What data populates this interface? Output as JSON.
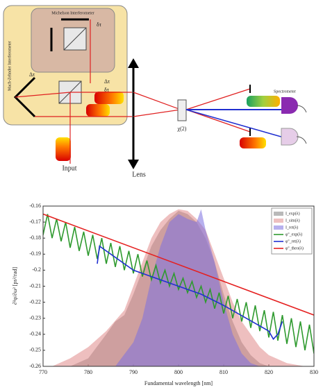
{
  "diagram": {
    "labels": {
      "michelson": "Michelson Interferometer",
      "mach_zehnder": "Mach-Zehnder Interferometer",
      "delta_tau_small_1": "δτ",
      "delta_tau_big_1": "Δτ",
      "delta_tau_big_2": "Δτ",
      "delta_tau_small_2": "δτ",
      "lens": "Lens",
      "crystal": "χ(2)",
      "spectrometer": "Spectrometer",
      "input": "Input"
    }
  },
  "chart_data": {
    "type": "line",
    "xlabel": "Fundamental wavelength [nm]",
    "ylabel": "∂²φ/∂ω² [ps²/rad]",
    "xlim": [
      770,
      830
    ],
    "ylim": [
      -0.26,
      -0.16
    ],
    "xticks": [
      770,
      780,
      790,
      800,
      810,
      820,
      830
    ],
    "yticks": [
      -0.16,
      -0.17,
      -0.18,
      -0.19,
      -0.2,
      -0.21,
      -0.22,
      -0.23,
      -0.24,
      -0.25,
      -0.26
    ],
    "legend": "upper right",
    "series": [
      {
        "name": "I_exp(λ)",
        "kind": "area",
        "color": "#7f7f7f",
        "x": [
          776,
          780,
          784,
          786,
          788,
          790,
          792,
          794,
          796,
          798,
          800,
          802,
          804,
          806,
          808,
          810,
          812,
          814,
          816,
          818,
          820
        ],
        "values": [
          -0.26,
          -0.255,
          -0.24,
          -0.232,
          -0.228,
          -0.215,
          -0.2,
          -0.185,
          -0.175,
          -0.168,
          -0.163,
          -0.165,
          -0.17,
          -0.18,
          -0.195,
          -0.215,
          -0.232,
          -0.245,
          -0.253,
          -0.258,
          -0.26
        ]
      },
      {
        "name": "I_sim(λ)",
        "kind": "area",
        "color": "#e08a8a",
        "x": [
          772,
          776,
          780,
          784,
          788,
          790,
          792,
          794,
          796,
          798,
          800,
          802,
          804,
          806,
          808,
          810,
          812,
          814,
          816,
          818,
          820,
          824,
          828
        ],
        "values": [
          -0.26,
          -0.255,
          -0.248,
          -0.238,
          -0.225,
          -0.21,
          -0.195,
          -0.18,
          -0.17,
          -0.165,
          -0.162,
          -0.163,
          -0.168,
          -0.175,
          -0.19,
          -0.205,
          -0.22,
          -0.232,
          -0.24,
          -0.248,
          -0.253,
          -0.258,
          -0.26
        ]
      },
      {
        "name": "I_ret(λ)",
        "kind": "area",
        "color": "#7b6fe0",
        "x": [
          786,
          790,
          792,
          794,
          796,
          798,
          800,
          802,
          804,
          805,
          806,
          808,
          810,
          812,
          814,
          816,
          818
        ],
        "values": [
          -0.26,
          -0.245,
          -0.23,
          -0.205,
          -0.185,
          -0.17,
          -0.165,
          -0.168,
          -0.17,
          -0.162,
          -0.175,
          -0.195,
          -0.22,
          -0.24,
          -0.252,
          -0.258,
          -0.26
        ]
      },
      {
        "name": "φ''_exp(λ)",
        "kind": "line",
        "color": "#2e9a2e",
        "x": [
          770,
          771,
          772,
          773,
          774,
          775,
          776,
          777,
          778,
          779,
          780,
          781,
          782,
          783,
          784,
          785,
          786,
          787,
          788,
          789,
          790,
          791,
          792,
          793,
          794,
          795,
          796,
          797,
          798,
          799,
          800,
          801,
          802,
          803,
          804,
          805,
          806,
          807,
          808,
          809,
          810,
          811,
          812,
          813,
          814,
          815,
          816,
          817,
          818,
          819,
          820,
          821,
          822,
          823,
          824,
          825,
          826,
          827,
          828,
          829,
          830
        ],
        "values": [
          -0.178,
          -0.165,
          -0.18,
          -0.168,
          -0.182,
          -0.17,
          -0.186,
          -0.173,
          -0.188,
          -0.176,
          -0.191,
          -0.178,
          -0.193,
          -0.18,
          -0.196,
          -0.183,
          -0.198,
          -0.185,
          -0.2,
          -0.188,
          -0.202,
          -0.19,
          -0.204,
          -0.194,
          -0.206,
          -0.197,
          -0.208,
          -0.2,
          -0.21,
          -0.202,
          -0.212,
          -0.205,
          -0.214,
          -0.207,
          -0.217,
          -0.21,
          -0.22,
          -0.212,
          -0.224,
          -0.214,
          -0.227,
          -0.216,
          -0.23,
          -0.218,
          -0.232,
          -0.22,
          -0.236,
          -0.222,
          -0.238,
          -0.225,
          -0.242,
          -0.226,
          -0.244,
          -0.228,
          -0.246,
          -0.23,
          -0.248,
          -0.232,
          -0.25,
          -0.234,
          -0.252
        ]
      },
      {
        "name": "φ''_ret(λ)",
        "kind": "line",
        "color": "#1f2fd0",
        "x": [
          782,
          782.5,
          785,
          790,
          795,
          800,
          805,
          810,
          815,
          820,
          821,
          822,
          823
        ],
        "values": [
          -0.196,
          -0.185,
          -0.19,
          -0.2,
          -0.205,
          -0.21,
          -0.215,
          -0.222,
          -0.23,
          -0.238,
          -0.243,
          -0.24,
          -0.232
        ]
      },
      {
        "name": "φ''_theo(λ)",
        "kind": "line",
        "color": "#e52020",
        "x": [
          770,
          830
        ],
        "values": [
          -0.165,
          -0.228
        ]
      }
    ]
  }
}
